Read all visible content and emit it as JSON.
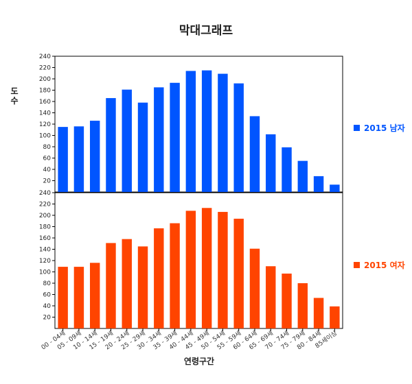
{
  "chart_data": {
    "type": "bar",
    "title": "막대그래프",
    "ylabel": "도 수",
    "xlabel": "연령구간",
    "ylim": [
      0,
      240
    ],
    "yticks": [
      20,
      40,
      60,
      80,
      100,
      120,
      140,
      160,
      180,
      200,
      220,
      240
    ],
    "categories": [
      "00 - 04세",
      "05 - 09세",
      "10 - 14세",
      "15 - 19세",
      "20 - 24세",
      "25 - 29세",
      "30 - 34세",
      "35 - 39세",
      "40 - 44세",
      "45 - 49세",
      "50 - 54세",
      "55 - 59세",
      "60 - 64세",
      "65 - 69세",
      "70 - 74세",
      "75 - 79세",
      "80 - 84세",
      "85세이상"
    ],
    "series": [
      {
        "name": "2015 남자",
        "color": "#0055ff",
        "values": [
          115,
          116,
          126,
          166,
          181,
          158,
          185,
          193,
          214,
          215,
          209,
          192,
          134,
          102,
          79,
          55,
          28,
          13
        ]
      },
      {
        "name": "2015 여자",
        "color": "#ff4400",
        "values": [
          109,
          109,
          116,
          151,
          158,
          145,
          177,
          186,
          208,
          213,
          206,
          194,
          141,
          110,
          97,
          80,
          54,
          39
        ]
      }
    ],
    "legend": "right",
    "grid": false
  }
}
